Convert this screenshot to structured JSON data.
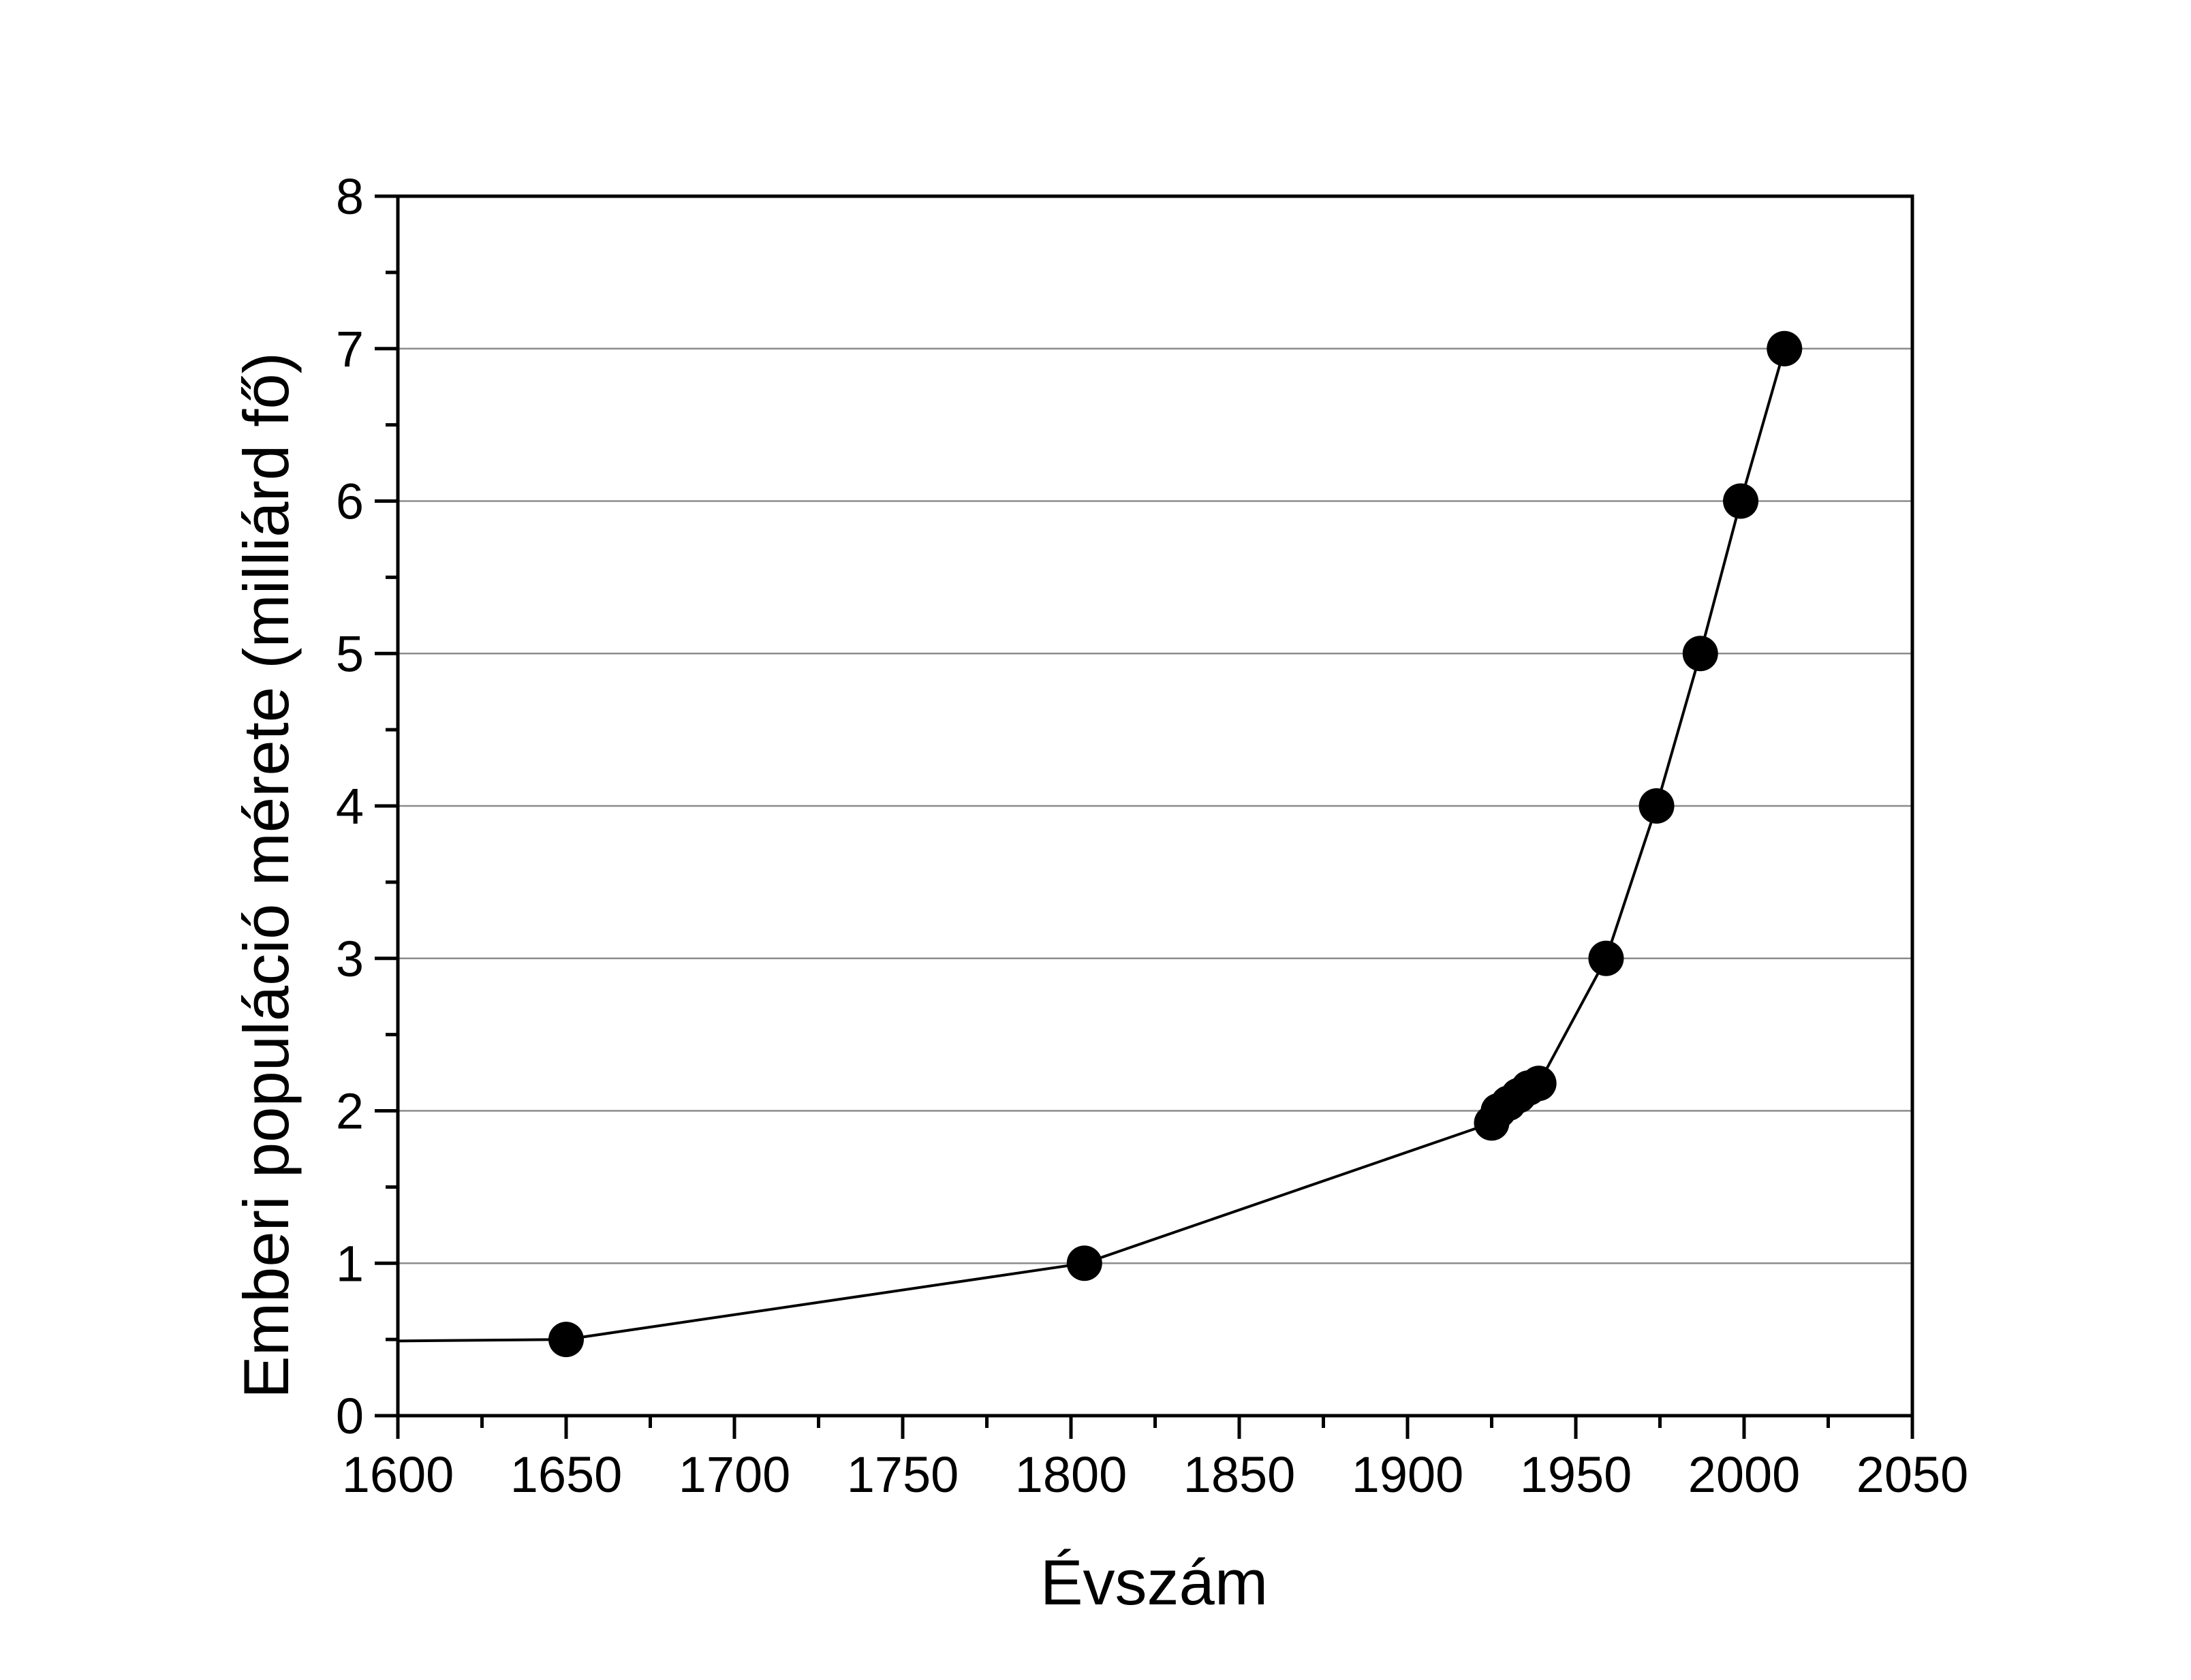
{
  "chart_data": {
    "type": "line",
    "title": "",
    "xlabel": "Évszám",
    "ylabel": "Emberi populáció mérete (milliárd fő)",
    "xlim": [
      1600,
      2050
    ],
    "ylim": [
      0,
      8
    ],
    "x_ticks": [
      1600,
      1650,
      1700,
      1750,
      1800,
      1850,
      1900,
      1950,
      2000,
      2050
    ],
    "y_ticks": [
      0,
      1,
      2,
      3,
      4,
      5,
      6,
      7,
      8
    ],
    "grid": "horizontal",
    "legend": "none",
    "line_start": {
      "x": 1600,
      "y": 0.49
    },
    "series": [
      {
        "name": "",
        "color": "#000000",
        "marker": "filled-circle",
        "points": [
          {
            "x": 1650,
            "y": 0.5
          },
          {
            "x": 1804,
            "y": 1.0
          },
          {
            "x": 1925,
            "y": 1.92
          },
          {
            "x": 1927,
            "y": 2.0
          },
          {
            "x": 1930,
            "y": 2.05
          },
          {
            "x": 1933,
            "y": 2.1
          },
          {
            "x": 1936,
            "y": 2.15
          },
          {
            "x": 1939,
            "y": 2.18
          },
          {
            "x": 1959,
            "y": 3.0
          },
          {
            "x": 1974,
            "y": 4.0
          },
          {
            "x": 1987,
            "y": 5.0
          },
          {
            "x": 1999,
            "y": 6.0
          },
          {
            "x": 2012,
            "y": 7.0
          }
        ]
      }
    ],
    "colors": {
      "axis": "#000000",
      "grid": "#8c8c8c",
      "series": "#000000"
    }
  }
}
